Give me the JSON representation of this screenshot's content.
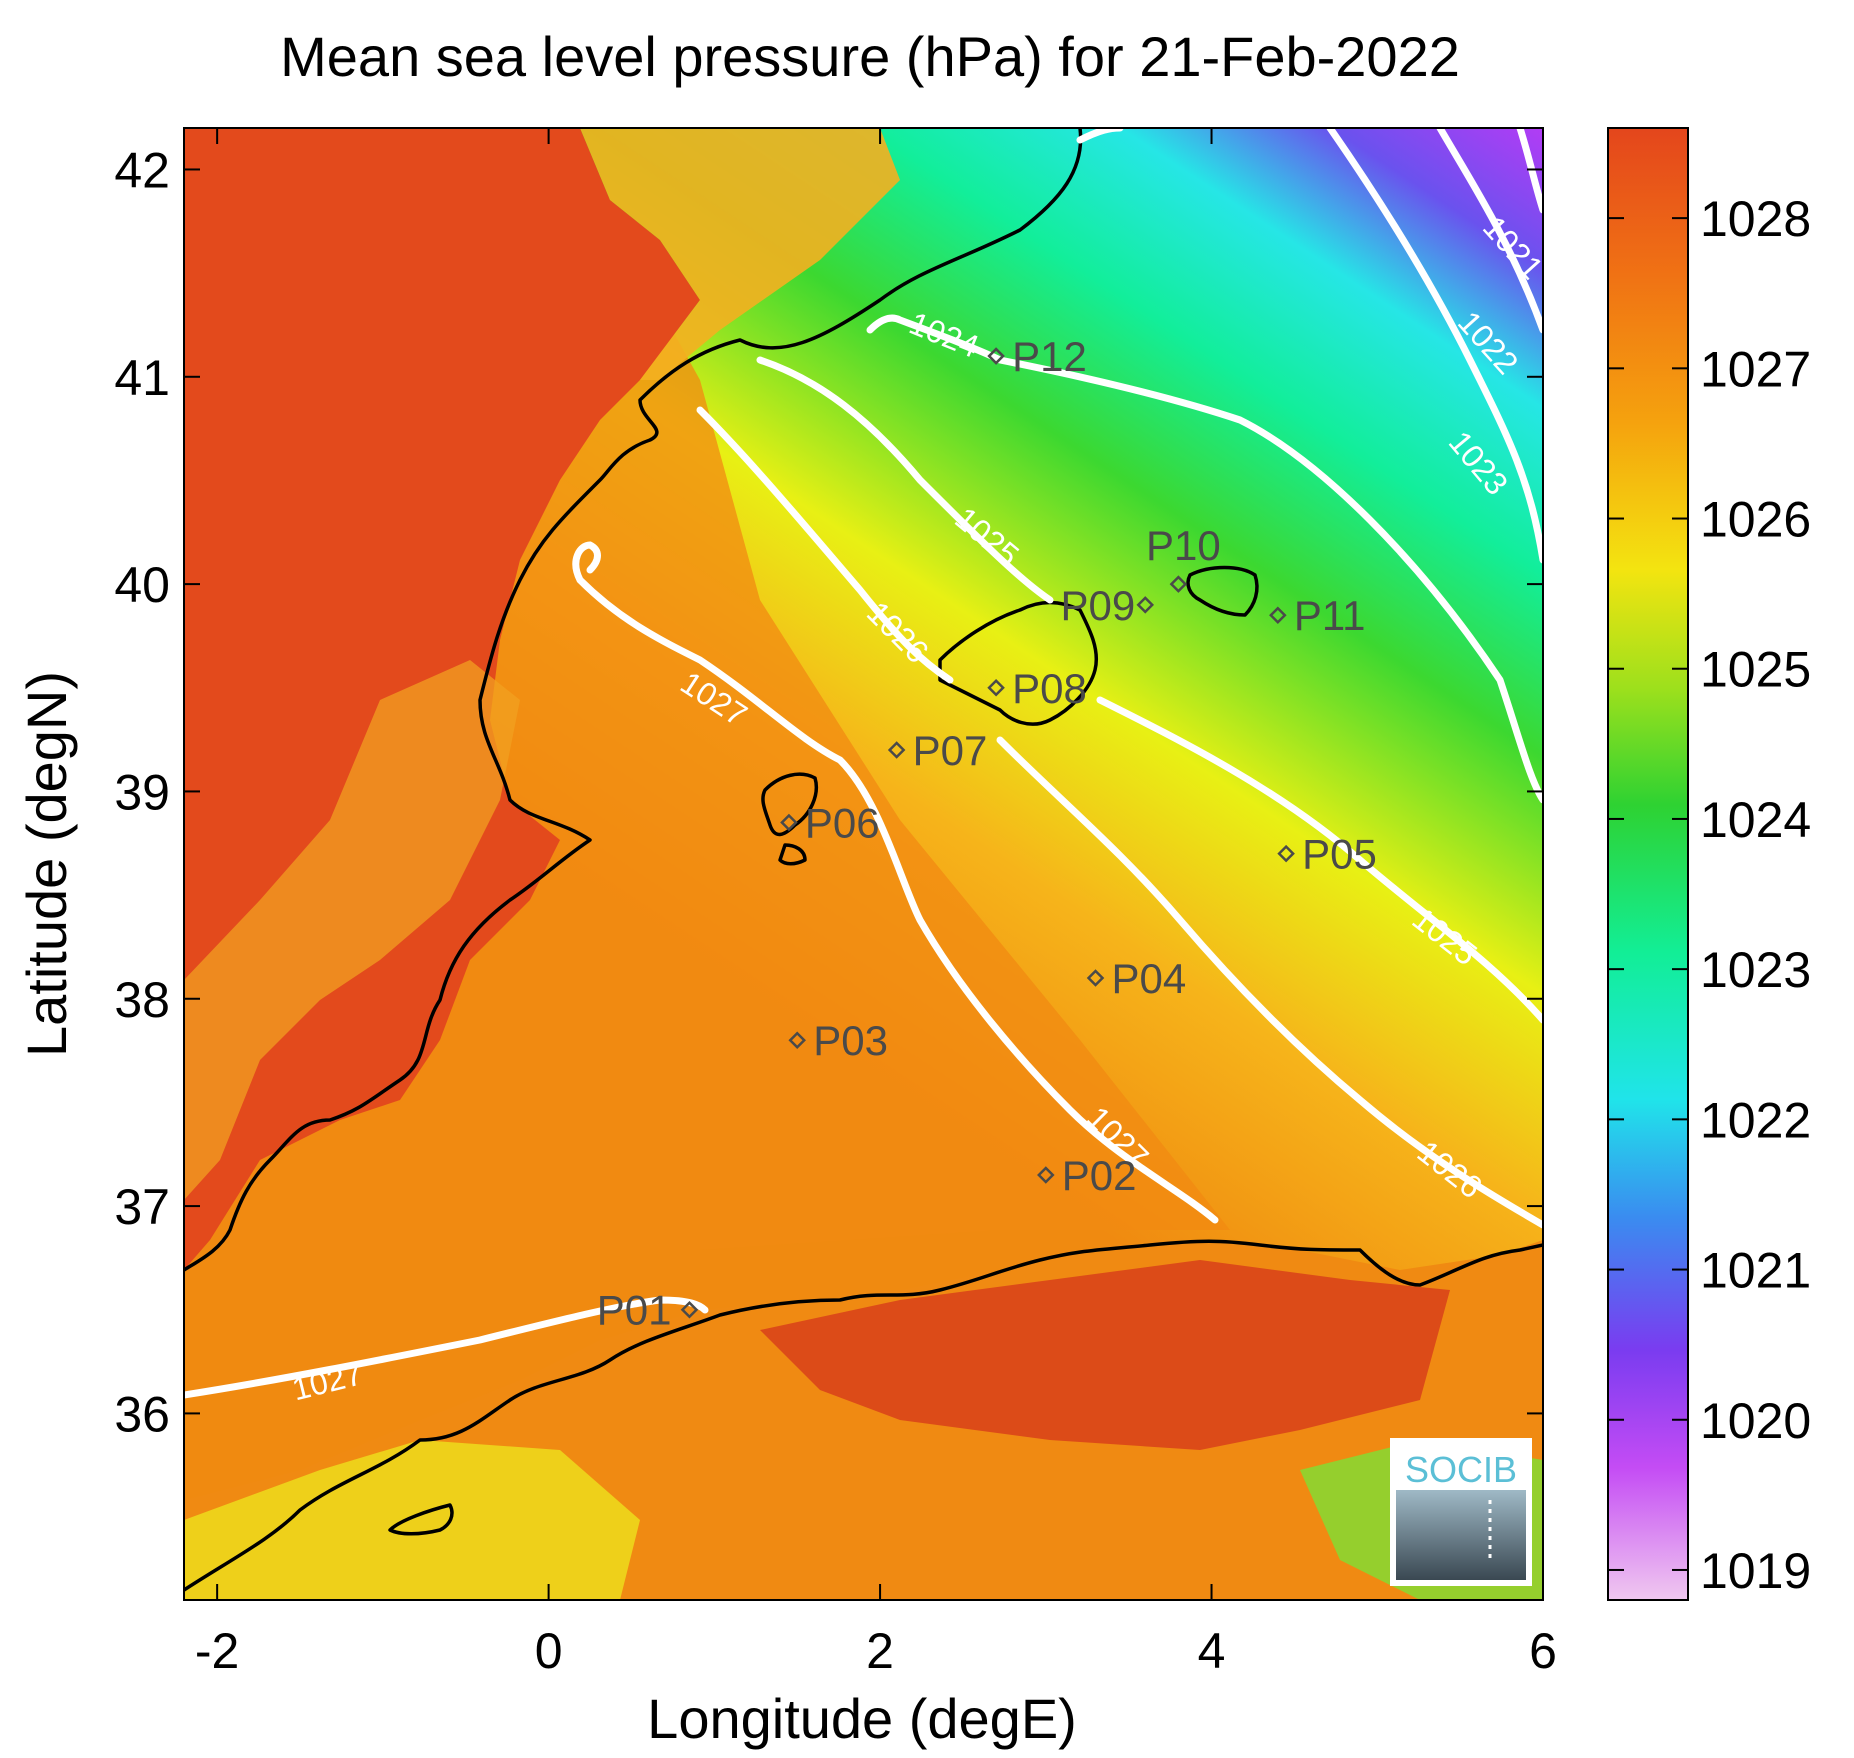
{
  "title": "Mean sea level pressure (hPa) for 21-Feb-2022",
  "xlabel": "Longitude (degE)",
  "ylabel": "Latitude (degN)",
  "x_ticks": [
    "-2",
    "0",
    "2",
    "4",
    "6"
  ],
  "y_ticks": [
    "42",
    "41",
    "40",
    "39",
    "38",
    "37",
    "36"
  ],
  "colorbar": {
    "ticks": [
      "1028",
      "1027",
      "1026",
      "1025",
      "1024",
      "1023",
      "1022",
      "1021",
      "1020",
      "1019"
    ],
    "colors": [
      "#ea4a1c",
      "#f59c0e",
      "#f0f010",
      "#3fd62e",
      "#12f098",
      "#22e8e8",
      "#3a8cf0",
      "#7a3cf0",
      "#b03cf5",
      "#eab0ee"
    ]
  },
  "contour_labels": [
    "1021",
    "1022",
    "1023",
    "1024",
    "1025",
    "1025",
    "1026",
    "1026",
    "1027",
    "1027",
    "1027"
  ],
  "stations": [
    {
      "id": "P01",
      "lon": 0.85,
      "lat": 36.5
    },
    {
      "id": "P02",
      "lon": 3.0,
      "lat": 37.15
    },
    {
      "id": "P03",
      "lon": 1.5,
      "lat": 37.8
    },
    {
      "id": "P04",
      "lon": 3.3,
      "lat": 38.1
    },
    {
      "id": "P05",
      "lon": 4.45,
      "lat": 38.7
    },
    {
      "id": "P06",
      "lon": 1.45,
      "lat": 38.85
    },
    {
      "id": "P07",
      "lon": 2.1,
      "lat": 39.2
    },
    {
      "id": "P08",
      "lon": 2.7,
      "lat": 39.5
    },
    {
      "id": "P09",
      "lon": 3.6,
      "lat": 39.9
    },
    {
      "id": "P10",
      "lon": 3.8,
      "lat": 40.0
    },
    {
      "id": "P11",
      "lon": 4.4,
      "lat": 39.85
    },
    {
      "id": "P12",
      "lon": 2.7,
      "lat": 41.1
    }
  ],
  "logo": {
    "text": "SOCIB",
    "color": "#5bbfd6"
  },
  "chart_data": {
    "type": "heatmap",
    "title": "Mean sea level pressure (hPa) for 21-Feb-2022",
    "xlabel": "Longitude (degE)",
    "ylabel": "Latitude (degN)",
    "xlim": [
      -2.2,
      6.0
    ],
    "ylim": [
      35.1,
      42.2
    ],
    "clim": [
      1018.8,
      1028.6
    ],
    "contour_levels": [
      1021,
      1022,
      1023,
      1024,
      1025,
      1026,
      1027
    ],
    "stations": [
      "P01",
      "P02",
      "P03",
      "P04",
      "P05",
      "P06",
      "P07",
      "P08",
      "P09",
      "P10",
      "P11",
      "P12"
    ]
  }
}
